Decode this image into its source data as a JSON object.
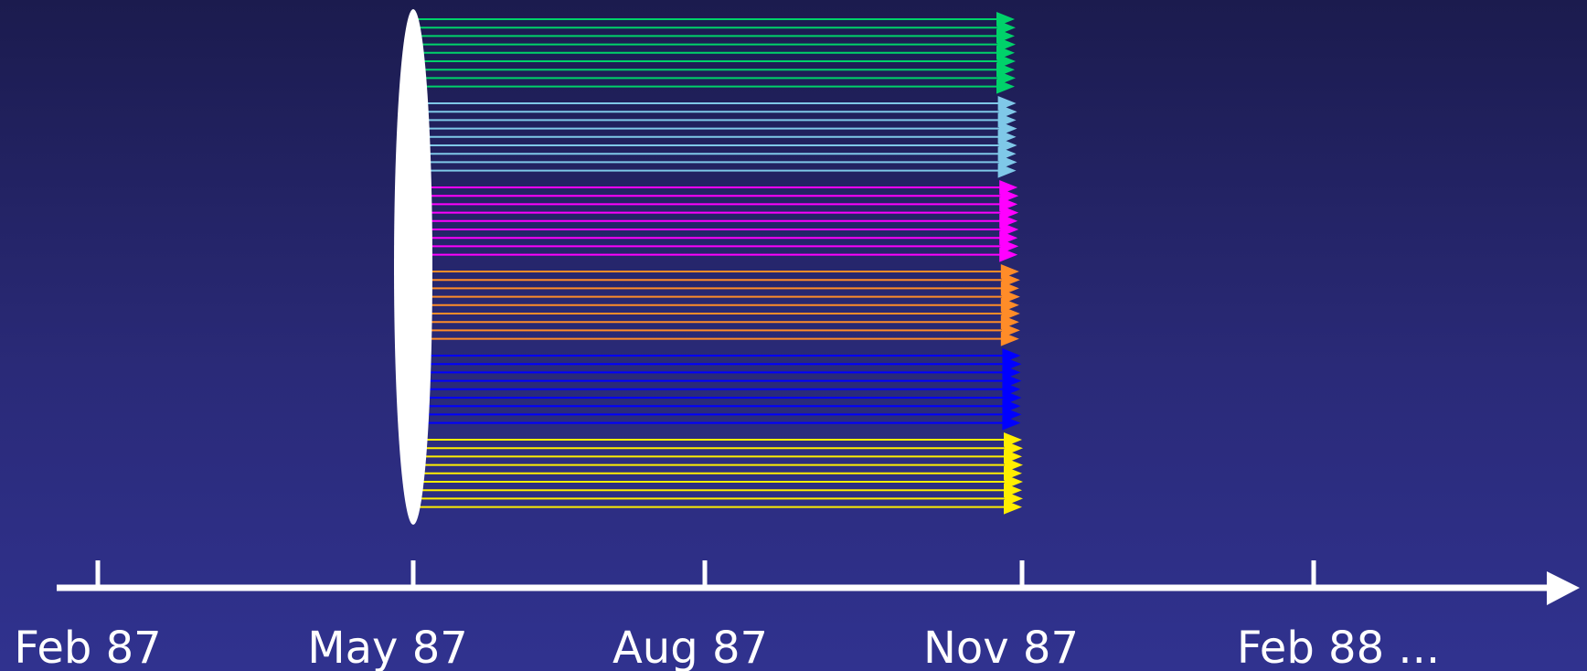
{
  "timeline": {
    "ticks": [
      {
        "label": "Feb 87"
      },
      {
        "label": "May 87"
      },
      {
        "label": "Aug 87"
      },
      {
        "label": "Nov 87"
      },
      {
        "label": "Feb 88 ..."
      }
    ],
    "axis_color": "#ffffff"
  },
  "diagram": {
    "source_shape": "white-ellipse",
    "source_color": "#ffffff",
    "groups": [
      {
        "color": "#00d26a",
        "arrow_count": 9
      },
      {
        "color": "#7fc8e8",
        "arrow_count": 9
      },
      {
        "color": "#ff00ff",
        "arrow_count": 9
      },
      {
        "color": "#ff8c28",
        "arrow_count": 9
      },
      {
        "color": "#0000ff",
        "arrow_count": 9
      },
      {
        "color": "#ffee00",
        "arrow_count": 9
      }
    ]
  }
}
